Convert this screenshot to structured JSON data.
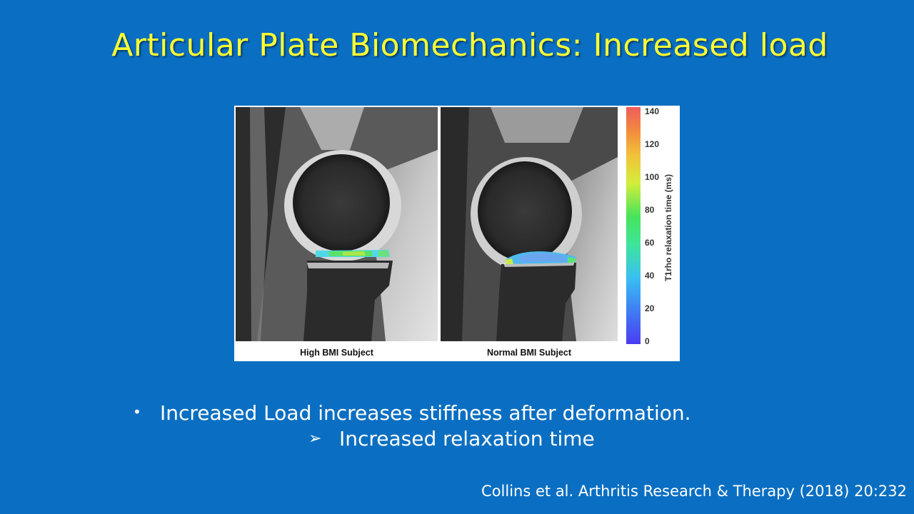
{
  "slide": {
    "title": "Articular Plate Biomechanics: Increased load",
    "bullet": "Increased Load increases stiffness after deformation.",
    "sub_bullet": "Increased relaxation time",
    "citation": "Collins et al. Arthritis Research & Therapy (2018) 20:232",
    "bullet_marker": "•",
    "sub_bullet_marker": "➢"
  },
  "figure": {
    "left_label": "High BMI Subject",
    "right_label": "Normal BMI Subject",
    "colorbar": {
      "label": "T1rho relaxation time (ms)",
      "ticks": [
        "140",
        "120",
        "100",
        "80",
        "60",
        "40",
        "20",
        "0"
      ],
      "min": 0,
      "max": 140
    }
  },
  "colors": {
    "background": "#0A6FC2",
    "title": "#FFFF33",
    "body_text": "#FFFFFF"
  }
}
